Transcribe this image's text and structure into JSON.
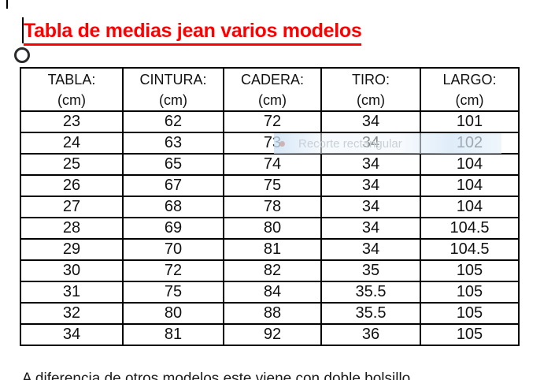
{
  "page": {
    "background": "#ffffff"
  },
  "title": {
    "text": "Tabla de medias jean varios modelos",
    "color": "#ff0000",
    "underlined": true
  },
  "cursor": {
    "type": "text-caret",
    "color": "#000000"
  },
  "anchor": {
    "shape": "circle",
    "color": "#2b2b2b"
  },
  "table": {
    "columns": [
      {
        "label": "TABLA:",
        "unit": "(cm)"
      },
      {
        "label": "CINTURA:",
        "unit": "(cm)"
      },
      {
        "label": "CADERA:",
        "unit": "(cm)"
      },
      {
        "label": "TIRO:",
        "unit": "(cm)"
      },
      {
        "label": "LARGO:",
        "unit": "(cm)"
      }
    ],
    "rows": [
      [
        "23",
        "62",
        "72",
        "34",
        "101"
      ],
      [
        "24",
        "63",
        "73",
        "34",
        "102"
      ],
      [
        "25",
        "65",
        "74",
        "34",
        "104"
      ],
      [
        "26",
        "67",
        "75",
        "34",
        "104"
      ],
      [
        "27",
        "68",
        "78",
        "34",
        "104"
      ],
      [
        "28",
        "69",
        "80",
        "34",
        "104.5"
      ],
      [
        "29",
        "70",
        "81",
        "34",
        "104.5"
      ],
      [
        "30",
        "72",
        "82",
        "35",
        "105"
      ],
      [
        "31",
        "75",
        "84",
        "35.5",
        "105"
      ],
      [
        "32",
        "80",
        "88",
        "35.5",
        "105"
      ],
      [
        "34",
        "81",
        "92",
        "36",
        "105"
      ]
    ],
    "border_color": "#000000"
  },
  "snip_tooltip": {
    "label": "Recorte rectangular",
    "background": "#dcebf7",
    "text_color": "#c8ced6",
    "dot_color": "#cbaaa9"
  },
  "clipped_text": {
    "text": "A diferencia de otros modelos este viene con doble bolsillo"
  }
}
